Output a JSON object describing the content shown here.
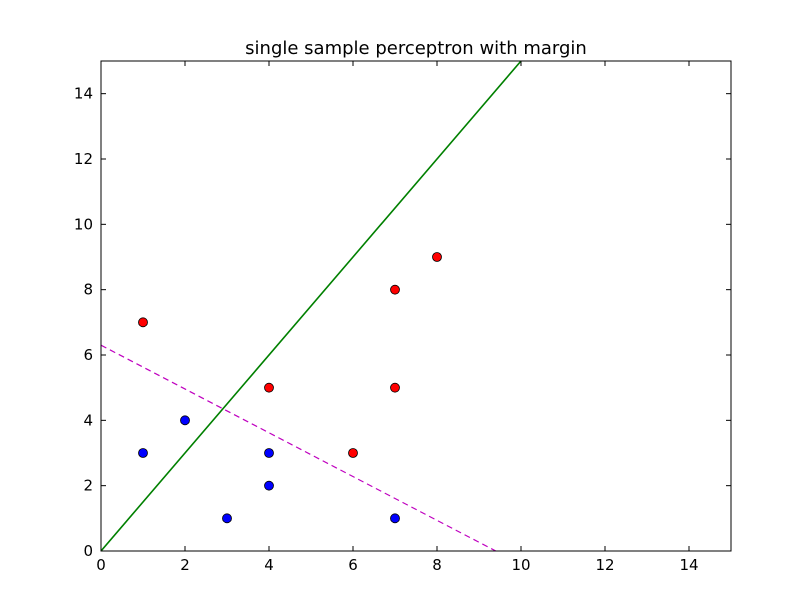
{
  "chart_data": {
    "type": "scatter",
    "title": "single sample perceptron with margin",
    "xlabel": "",
    "ylabel": "",
    "xlim": [
      0,
      15
    ],
    "ylim": [
      0,
      15
    ],
    "x_ticks": [
      0,
      2,
      4,
      6,
      8,
      10,
      12,
      14
    ],
    "y_ticks": [
      0,
      2,
      4,
      6,
      8,
      10,
      12,
      14
    ],
    "grid": false,
    "series": [
      {
        "type": "scatter",
        "color": "#ff0000",
        "points": [
          {
            "x": 1,
            "y": 7
          },
          {
            "x": 4,
            "y": 5
          },
          {
            "x": 6,
            "y": 3
          },
          {
            "x": 7,
            "y": 8
          },
          {
            "x": 7,
            "y": 5
          },
          {
            "x": 8,
            "y": 9
          }
        ]
      },
      {
        "type": "scatter",
        "color": "#0000ff",
        "points": [
          {
            "x": 1,
            "y": 3
          },
          {
            "x": 2,
            "y": 4
          },
          {
            "x": 3,
            "y": 1
          },
          {
            "x": 4,
            "y": 3
          },
          {
            "x": 4,
            "y": 2
          },
          {
            "x": 7,
            "y": 1
          }
        ]
      },
      {
        "type": "line",
        "color": "#008000",
        "style": "solid",
        "points": [
          {
            "x": 0,
            "y": 0
          },
          {
            "x": 10,
            "y": 15
          }
        ]
      },
      {
        "type": "line",
        "color": "#bf00bf",
        "style": "dashed",
        "points": [
          {
            "x": 0,
            "y": 6.3
          },
          {
            "x": 9.4,
            "y": 0
          }
        ]
      }
    ]
  }
}
